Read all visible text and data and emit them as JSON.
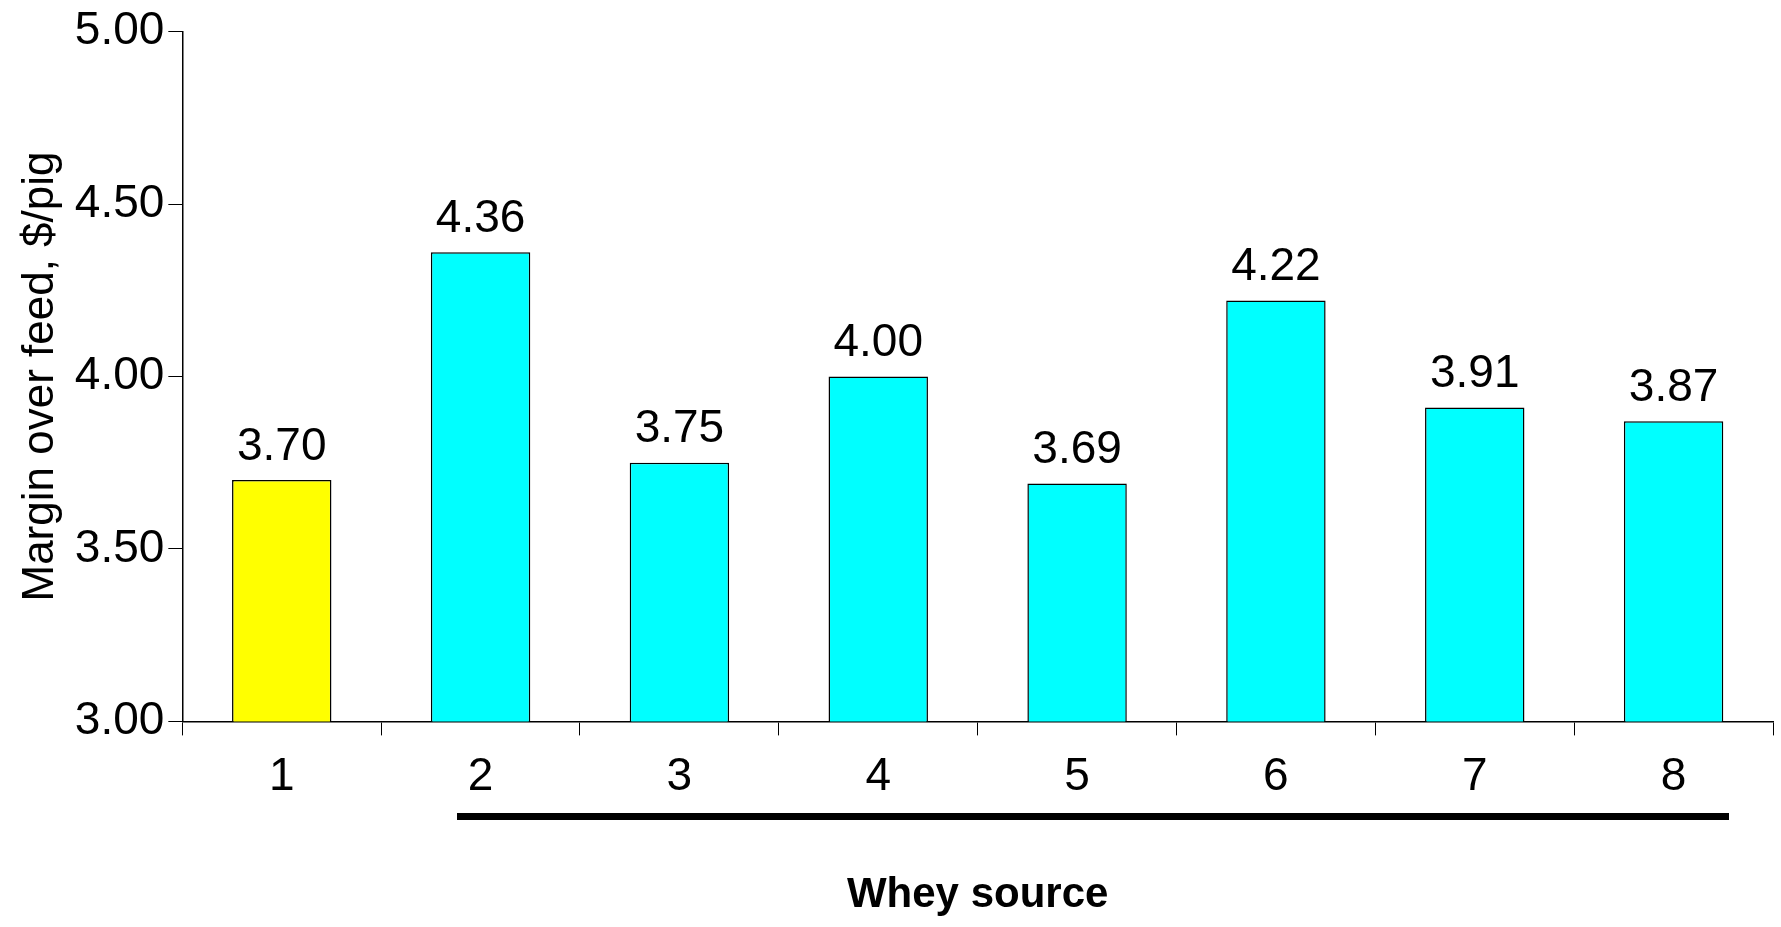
{
  "chart_data": {
    "type": "bar",
    "xlabel": "Whey source",
    "ylabel": "Margin over feed, $/pig",
    "categories": [
      "1",
      "2",
      "3",
      "4",
      "5",
      "6",
      "7",
      "8"
    ],
    "values": [
      3.7,
      4.36,
      3.75,
      4.0,
      3.69,
      4.22,
      3.91,
      3.87
    ],
    "value_labels": [
      "3.70",
      "4.36",
      "3.75",
      "4.00",
      "3.69",
      "4.22",
      "3.91",
      "3.87"
    ],
    "colors": [
      "#ffff00",
      "#00ffff",
      "#00ffff",
      "#00ffff",
      "#00ffff",
      "#00ffff",
      "#00ffff",
      "#00ffff"
    ],
    "ylim": [
      3,
      5
    ],
    "yticks": [
      {
        "value": 3,
        "label": "3.00"
      },
      {
        "value": 3.5,
        "label": "3.50"
      },
      {
        "value": 4,
        "label": "4.00"
      },
      {
        "value": 4.5,
        "label": "4.50"
      },
      {
        "value": 5,
        "label": "5.00"
      }
    ],
    "grid": false,
    "legend": false
  }
}
